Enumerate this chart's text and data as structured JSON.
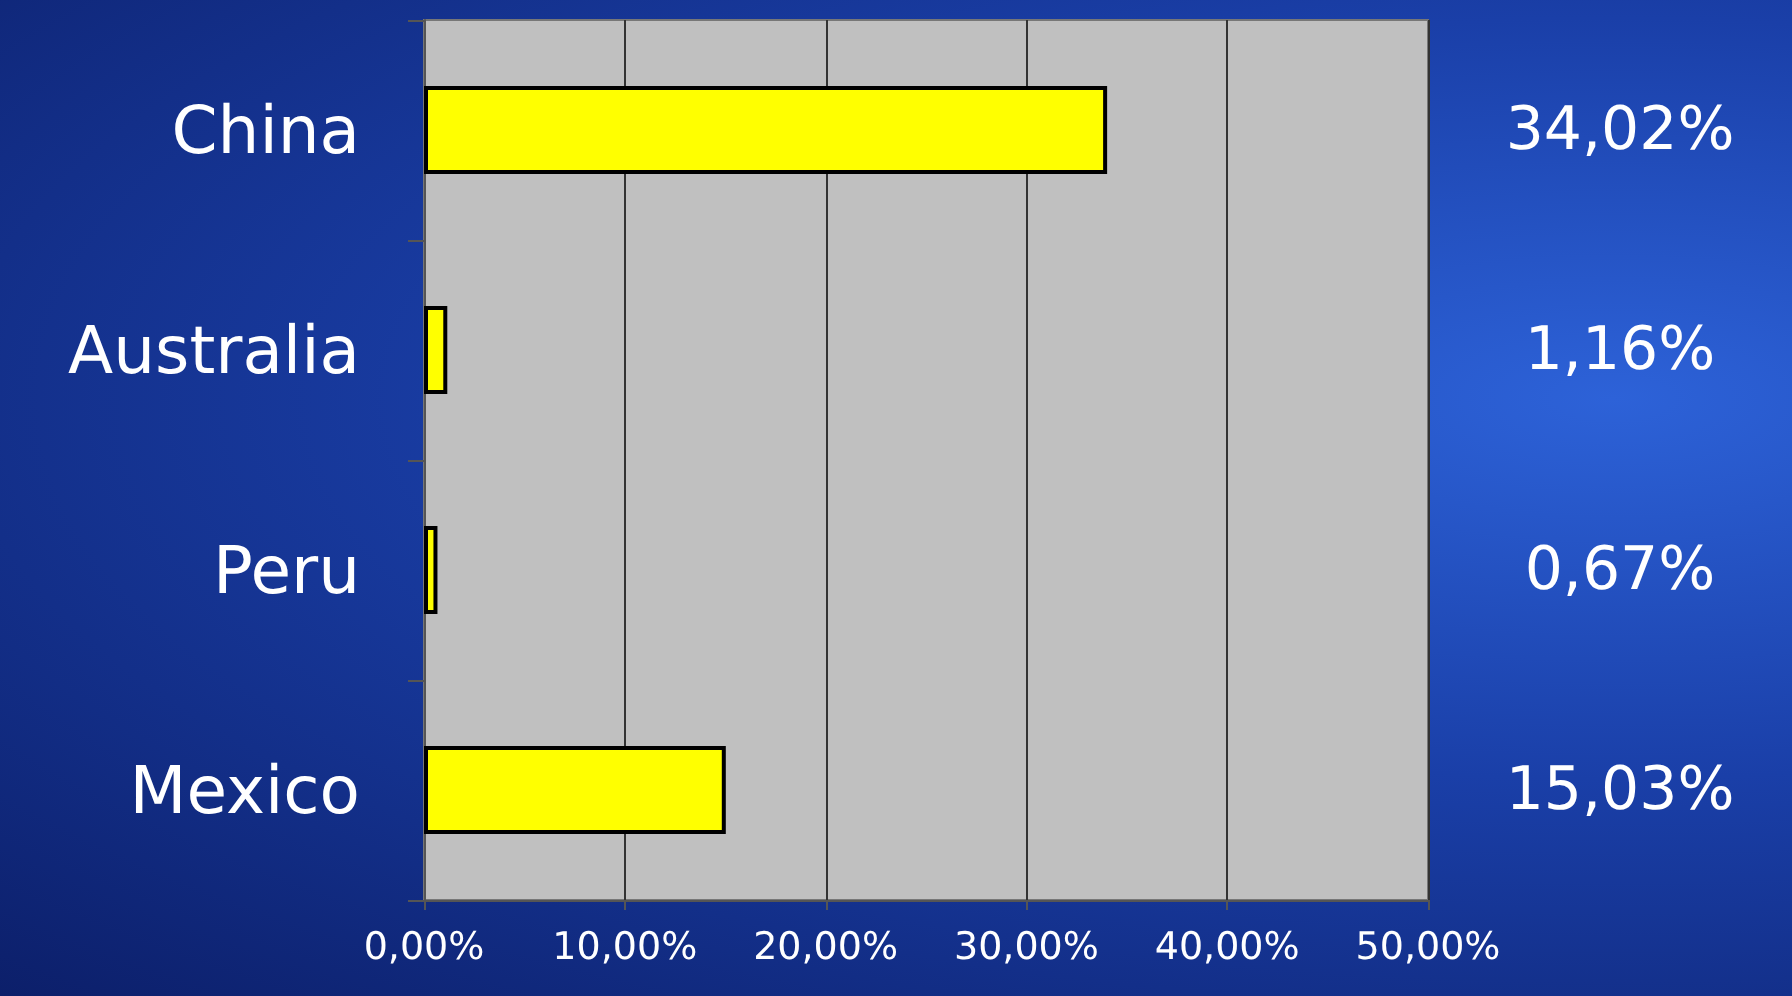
{
  "chart_data": {
    "type": "bar",
    "orientation": "horizontal",
    "categories": [
      "China",
      "Australia",
      "Peru",
      "Mexico"
    ],
    "values": [
      34.02,
      1.16,
      0.67,
      15.03
    ],
    "color": "#ffff00",
    "value_labels": [
      "34,02%",
      "1,16%",
      "0,67%",
      "15,03%"
    ],
    "xlim": [
      0,
      50
    ],
    "xticks": [
      {
        "value": 0,
        "label": "0,00%"
      },
      {
        "value": 10,
        "label": "10,00%"
      },
      {
        "value": 20,
        "label": "20,00%"
      },
      {
        "value": 30,
        "label": "30,00%"
      },
      {
        "value": 40,
        "label": "40,00%"
      },
      {
        "value": 50,
        "label": "50,00%"
      }
    ],
    "grid": "x"
  }
}
